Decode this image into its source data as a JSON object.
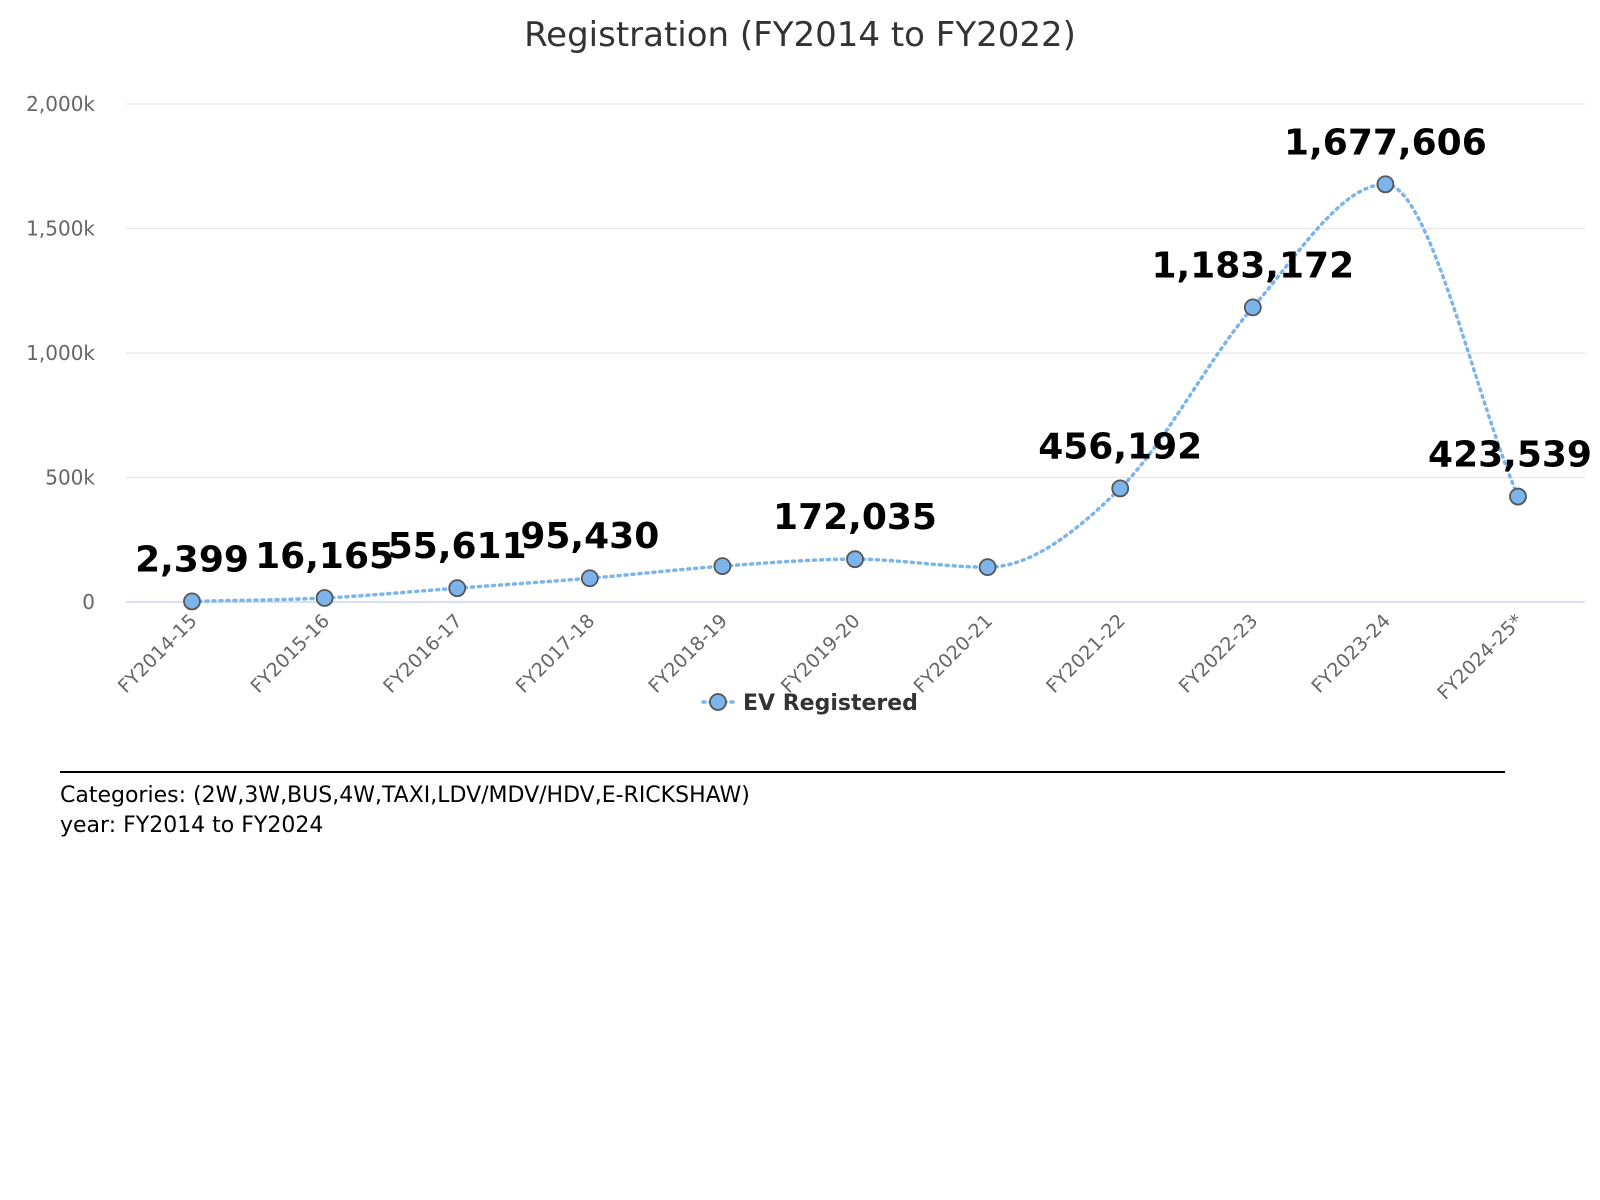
{
  "chart_data": {
    "type": "line",
    "title": "Registration (FY2014 to FY2022)",
    "categories": [
      "FY2014-15",
      "FY2015-16",
      "FY2016-17",
      "FY2017-18",
      "FY2018-19",
      "FY2019-20",
      "FY2020-21",
      "FY2021-22",
      "FY2022-23",
      "FY2023-24",
      "FY2024-25*"
    ],
    "series": [
      {
        "name": "EV Registered",
        "values": [
          2399,
          16165,
          55611,
          95430,
          144000,
          172035,
          140000,
          456192,
          1183172,
          1677606,
          423539
        ],
        "data_labels": [
          "2,399",
          "16,165",
          "55,611",
          "95,430",
          null,
          "172,035",
          null,
          "456,192",
          "1,183,172",
          "1,677,606",
          "423,539"
        ],
        "color": "#7cb5ec",
        "line_style": "dotted",
        "marker": "circle"
      }
    ],
    "ylim": [
      0,
      2000000
    ],
    "yticks": [
      0,
      500000,
      1000000,
      1500000,
      2000000
    ],
    "ytick_labels": [
      "0",
      "500k",
      "1,000k",
      "1,500k",
      "2,000k"
    ],
    "xlabel": "",
    "ylabel": "",
    "grid": true,
    "legend": "bottom-center",
    "colors": {
      "series": "#7cb5ec",
      "marker_stroke": "#555555",
      "grid": "#e6e6e6",
      "axis": "#ccd6eb",
      "text": "#333333",
      "tick_text": "#666666"
    }
  },
  "footer": {
    "lines": [
      "Categories: (2W,3W,BUS,4W,TAXI,LDV/MDV/HDV,E-RICKSHAW)",
      "year: FY2014 to FY2024"
    ]
  }
}
